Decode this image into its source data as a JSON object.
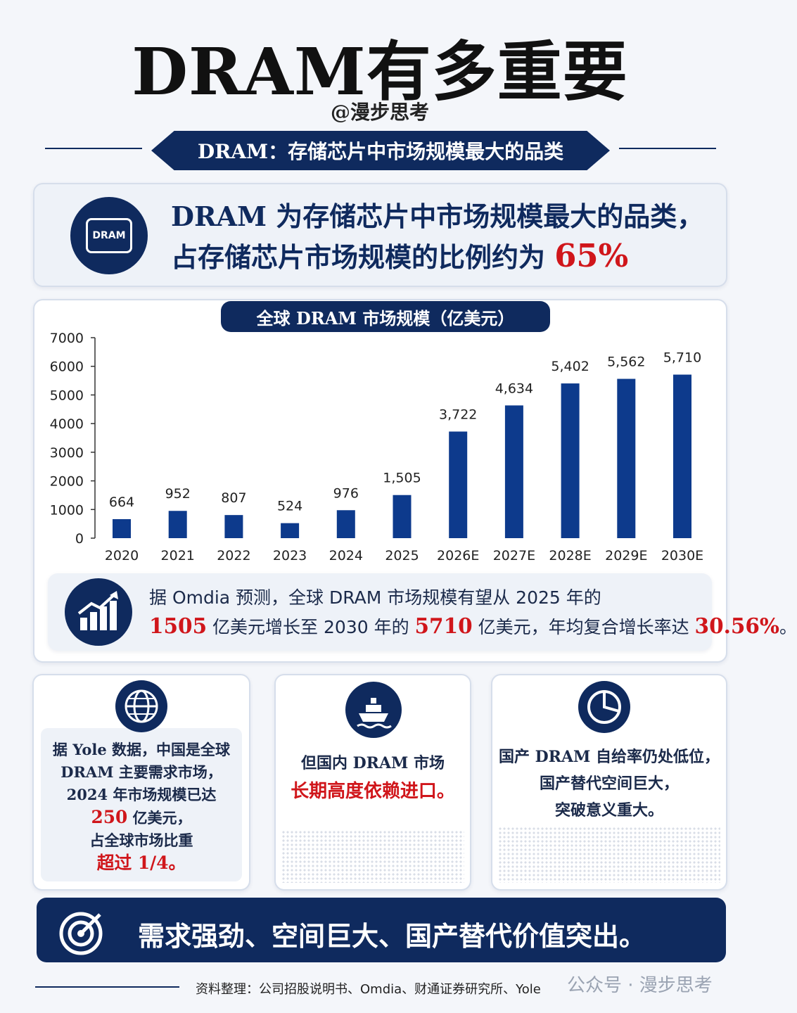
{
  "header": {
    "title": "DRAM有多重要",
    "author": "@漫步思考",
    "banner": "DRAM：存储芯片中市场规模最大的品类"
  },
  "summary": {
    "icon": "DRAM",
    "lines": [
      [
        {
          "text": "DRAM 为存储芯片中市场规模最大的品类，"
        }
      ],
      [
        {
          "text": "占存储芯片市场规模的比例约为 "
        },
        {
          "text": "65%",
          "emphasis": true
        }
      ]
    ]
  },
  "chart_data": {
    "type": "bar",
    "title": "全球 DRAM 市场规模（亿美元）",
    "categories": [
      "2020",
      "2021",
      "2022",
      "2023",
      "2024",
      "2025",
      "2026E",
      "2027E",
      "2028E",
      "2029E",
      "2030E"
    ],
    "values": [
      664,
      952,
      807,
      524,
      976,
      1505,
      3722,
      4634,
      5402,
      5562,
      5710
    ],
    "value_labels": [
      "664",
      "952",
      "807",
      "524",
      "976",
      "1,505",
      "3,722",
      "4,634",
      "5,402",
      "5,562",
      "5,710"
    ],
    "color": "#0d3a8c",
    "ylim": [
      0,
      7000
    ],
    "yticks": [
      0,
      1000,
      2000,
      3000,
      4000,
      5000,
      6000,
      7000
    ]
  },
  "forecast": {
    "lines": [
      [
        {
          "text": "据 Omdia 预测，全球 DRAM 市场规模有望从 2025 年的"
        }
      ],
      [
        {
          "text": "1505",
          "emphasis": true
        },
        {
          "text": " 亿美元增长至 2030 年的 "
        },
        {
          "text": "5710",
          "emphasis": true
        },
        {
          "text": " 亿美元，年均复合增长率达 "
        },
        {
          "text": "30.56%",
          "emphasis": true
        },
        {
          "text": "。"
        }
      ]
    ]
  },
  "cards": [
    {
      "lines": [
        [
          {
            "text": "据 Yole 数据，中国是全球"
          }
        ],
        [
          {
            "text": "DRAM 主要需求市场，"
          }
        ],
        [
          {
            "text": "2024 年市场规模已达"
          }
        ],
        [
          {
            "text": "250",
            "emphasis": true
          },
          {
            "text": " 亿美元，"
          }
        ],
        [
          {
            "text": "占全球市场比重"
          }
        ],
        [
          {
            "text": "超过 1/4。",
            "emphasis": true
          }
        ]
      ]
    },
    {
      "lines": [
        [
          {
            "text": "但国内 DRAM 市场"
          }
        ],
        [
          {
            "text": "长期高度依赖进口。",
            "emphasis": true
          }
        ]
      ]
    },
    {
      "lines": [
        [
          {
            "text": "国产 DRAM 自给率仍处低位，"
          }
        ],
        [
          {
            "text": "国产替代空间巨大，"
          }
        ],
        [
          {
            "text": "突破意义重大。"
          }
        ]
      ]
    }
  ],
  "conclusion": "需求强劲、空间巨大、国产替代价值突出。",
  "footer": {
    "source": "资料整理：公司招股说明书、Omdia、财通证券研究所、Yole",
    "watermark": "公众号 · 漫步思考"
  }
}
